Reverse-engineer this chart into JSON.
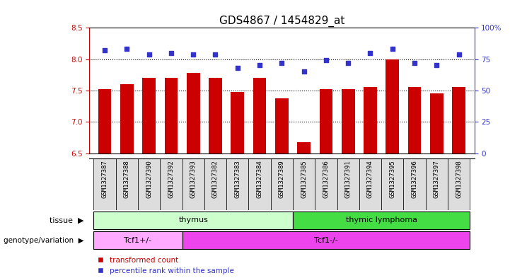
{
  "title": "GDS4867 / 1454829_at",
  "samples": [
    "GSM1327387",
    "GSM1327388",
    "GSM1327390",
    "GSM1327392",
    "GSM1327393",
    "GSM1327382",
    "GSM1327383",
    "GSM1327384",
    "GSM1327389",
    "GSM1327385",
    "GSM1327386",
    "GSM1327391",
    "GSM1327394",
    "GSM1327395",
    "GSM1327396",
    "GSM1327397",
    "GSM1327398"
  ],
  "red_values": [
    7.52,
    7.6,
    7.7,
    7.7,
    7.78,
    7.7,
    7.48,
    7.7,
    7.38,
    6.67,
    7.52,
    7.52,
    7.55,
    8.0,
    7.55,
    7.45,
    7.55
  ],
  "blue_values": [
    82,
    83,
    79,
    80,
    79,
    79,
    68,
    70,
    72,
    65,
    74,
    72,
    80,
    83,
    72,
    70,
    79
  ],
  "ylim_left": [
    6.5,
    8.5
  ],
  "ylim_right": [
    0,
    100
  ],
  "yticks_left": [
    6.5,
    7.0,
    7.5,
    8.0,
    8.5
  ],
  "yticks_right": [
    0,
    25,
    50,
    75,
    100
  ],
  "ytick_labels_right": [
    "0",
    "25",
    "50",
    "75",
    "100%"
  ],
  "hlines": [
    7.0,
    7.5,
    8.0
  ],
  "bar_color": "#cc0000",
  "dot_color": "#3333cc",
  "tissue_groups": [
    {
      "label": "thymus",
      "start": 0,
      "end": 9,
      "color": "#ccffcc"
    },
    {
      "label": "thymic lymphoma",
      "start": 9,
      "end": 17,
      "color": "#44dd44"
    }
  ],
  "genotype_groups": [
    {
      "label": "Tcf1+/-",
      "start": 0,
      "end": 4,
      "color": "#ffaaff"
    },
    {
      "label": "Tcf1-/-",
      "start": 4,
      "end": 17,
      "color": "#ee44ee"
    }
  ],
  "legend_items": [
    {
      "label": "transformed count",
      "color": "#cc0000"
    },
    {
      "label": "percentile rank within the sample",
      "color": "#3333cc"
    }
  ],
  "title_fontsize": 11,
  "tick_fontsize": 7.5,
  "sample_fontsize": 6.5,
  "label_fontsize": 8
}
